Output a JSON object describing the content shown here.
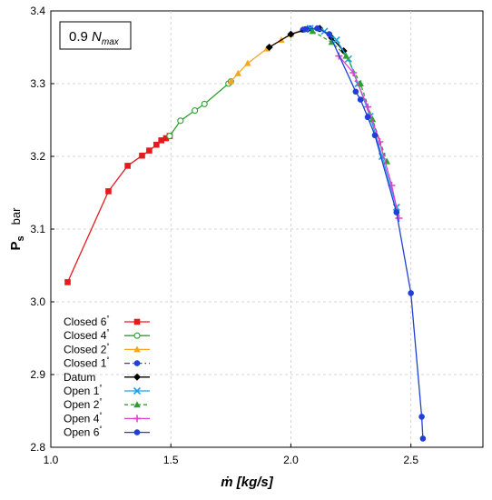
{
  "chart_data": {
    "type": "line",
    "annotation": {
      "prefix": "0.9 ",
      "main": "N",
      "sub": "max"
    },
    "xlabel": "ṁ [kg/s]",
    "ylabel": {
      "main": "P",
      "sub": "s",
      "unit": "bar"
    },
    "xlim": [
      1.0,
      2.8
    ],
    "ylim": [
      2.8,
      3.4
    ],
    "x_ticks": [
      1.0,
      1.5,
      2.0,
      2.5
    ],
    "y_ticks": [
      2.8,
      2.9,
      3.0,
      3.1,
      3.2,
      3.3,
      3.4
    ],
    "x_tick_labels": [
      "1.0",
      "1.5",
      "2.0",
      "2.5"
    ],
    "y_tick_labels": [
      "2.8",
      "2.9",
      "3.0",
      "3.1",
      "3.2",
      "3.3",
      "3.4"
    ],
    "grid": true,
    "legend_position": "bottom-left",
    "series": [
      {
        "name": "Closed 6",
        "sup": "°",
        "color": "#e41a1c",
        "marker": "square",
        "dash": "solid",
        "points": [
          [
            1.07,
            3.027
          ],
          [
            1.24,
            3.152
          ],
          [
            1.32,
            3.187
          ],
          [
            1.38,
            3.201
          ],
          [
            1.41,
            3.208
          ],
          [
            1.44,
            3.216
          ],
          [
            1.46,
            3.222
          ],
          [
            1.48,
            3.225
          ],
          [
            1.495,
            3.228
          ]
        ]
      },
      {
        "name": "Closed 4",
        "sup": "°",
        "color": "#2ca02c",
        "marker": "circle-open",
        "dash": "solid",
        "points": [
          [
            1.495,
            3.228
          ],
          [
            1.54,
            3.249
          ],
          [
            1.6,
            3.263
          ],
          [
            1.64,
            3.272
          ],
          [
            1.74,
            3.3
          ],
          [
            1.75,
            3.303
          ]
        ]
      },
      {
        "name": "Closed 2",
        "sup": "°",
        "color": "#f5a623",
        "marker": "triangle",
        "dash": "solid",
        "points": [
          [
            1.75,
            3.303
          ],
          [
            1.78,
            3.314
          ],
          [
            1.82,
            3.328
          ],
          [
            1.9,
            3.348
          ],
          [
            1.96,
            3.36
          ],
          [
            2.0,
            3.368
          ],
          [
            2.05,
            3.374
          ]
        ]
      },
      {
        "name": "Closed 1",
        "sup": "°",
        "color": "#1f3fd6",
        "marker": "circle",
        "dash": "dashdot",
        "points": [
          [
            2.05,
            3.374
          ],
          [
            2.08,
            3.376
          ],
          [
            2.12,
            3.375
          ]
        ]
      },
      {
        "name": "Datum",
        "sup": "",
        "color": "#000000",
        "marker": "diamond",
        "dash": "solid",
        "points": [
          [
            1.91,
            3.35
          ],
          [
            2.0,
            3.368
          ],
          [
            2.07,
            3.375
          ],
          [
            2.12,
            3.376
          ],
          [
            2.17,
            3.363
          ],
          [
            2.22,
            3.345
          ]
        ]
      },
      {
        "name": "Open 1",
        "sup": "°",
        "color": "#1fa3e0",
        "marker": "x",
        "dash": "solid",
        "points": [
          [
            2.08,
            3.376
          ],
          [
            2.14,
            3.372
          ],
          [
            2.19,
            3.36
          ],
          [
            2.24,
            3.334
          ],
          [
            2.28,
            3.3
          ],
          [
            2.33,
            3.255
          ],
          [
            2.38,
            3.2
          ],
          [
            2.44,
            3.13
          ]
        ]
      },
      {
        "name": "Open 2",
        "sup": "°",
        "color": "#2ca02c",
        "marker": "triangle",
        "dash": "dashed",
        "points": [
          [
            2.09,
            3.372
          ],
          [
            2.17,
            3.357
          ],
          [
            2.23,
            3.338
          ],
          [
            2.29,
            3.3
          ],
          [
            2.34,
            3.251
          ],
          [
            2.4,
            3.193
          ]
        ]
      },
      {
        "name": "Open 4",
        "sup": "°",
        "color": "#e040d0",
        "marker": "plus",
        "dash": "solid",
        "points": [
          [
            2.2,
            3.338
          ],
          [
            2.26,
            3.315
          ],
          [
            2.32,
            3.268
          ],
          [
            2.37,
            3.22
          ],
          [
            2.42,
            3.16
          ],
          [
            2.45,
            3.115
          ]
        ]
      },
      {
        "name": "Open 6",
        "sup": "°",
        "color": "#1f3fd6",
        "marker": "circle",
        "dash": "solid",
        "points": [
          [
            2.06,
            3.375
          ],
          [
            2.11,
            3.376
          ],
          [
            2.16,
            3.368
          ],
          [
            2.27,
            3.289
          ],
          [
            2.29,
            3.278
          ],
          [
            2.32,
            3.254
          ],
          [
            2.35,
            3.229
          ],
          [
            2.44,
            3.123
          ],
          [
            2.5,
            3.012
          ],
          [
            2.545,
            2.842
          ],
          [
            2.55,
            2.812
          ]
        ]
      }
    ]
  }
}
